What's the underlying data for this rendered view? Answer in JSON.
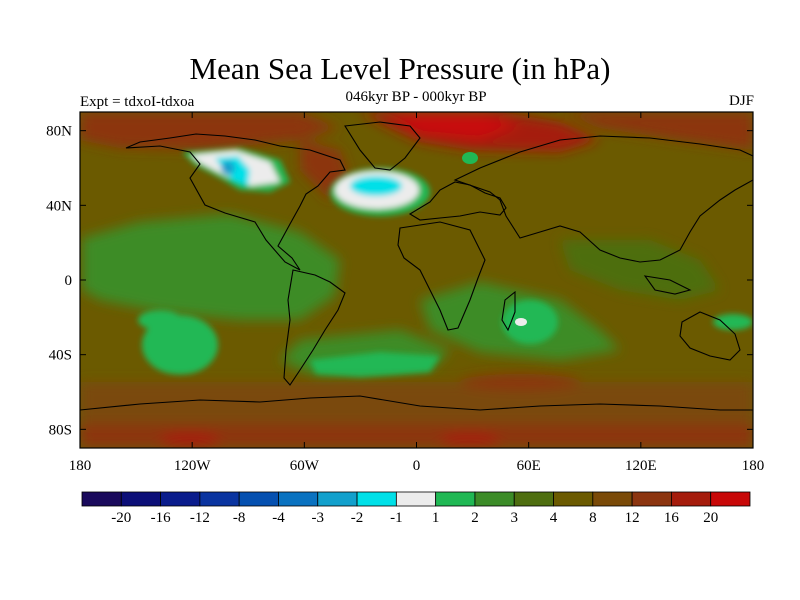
{
  "title": "Mean Sea Level Pressure (in hPa)",
  "subtitle": "046kyr BP - 000kyr BP",
  "experiment_label": "Expt = tdxoI-tdxoa",
  "season_label": "DJF",
  "map": {
    "projection": "cylindrical equidistant",
    "lon_range": [
      -180,
      180
    ],
    "lat_range": [
      -90,
      90
    ],
    "background_color": "#6b5a00"
  },
  "axes": {
    "lon_ticks": [
      {
        "value": -180,
        "label": "180"
      },
      {
        "value": -120,
        "label": "120W"
      },
      {
        "value": -60,
        "label": "60W"
      },
      {
        "value": 0,
        "label": "0"
      },
      {
        "value": 60,
        "label": "60E"
      },
      {
        "value": 120,
        "label": "120E"
      },
      {
        "value": 180,
        "label": "180"
      }
    ],
    "lat_ticks": [
      {
        "value": 80,
        "label": "80N"
      },
      {
        "value": 40,
        "label": "40N"
      },
      {
        "value": 0,
        "label": "0"
      },
      {
        "value": -40,
        "label": "40S"
      },
      {
        "value": -80,
        "label": "80S"
      }
    ]
  },
  "colorbar": {
    "colors": [
      "#1a0a5c",
      "#0c0f78",
      "#0a1c8c",
      "#0a34a0",
      "#0550b0",
      "#0a72c0",
      "#12a0cc",
      "#00e0e8",
      "#ececec",
      "#20b854",
      "#3c8c28",
      "#4e6e10",
      "#6b5a00",
      "#7a4a08",
      "#8c3510",
      "#a51c0c",
      "#c80808"
    ],
    "labels": [
      "-20",
      "-16",
      "-12",
      "-8",
      "-4",
      "-3",
      "-2",
      "-1",
      "1",
      "2",
      "3",
      "4",
      "8",
      "12",
      "16",
      "20"
    ]
  },
  "chart_data": {
    "type": "heatmap",
    "title": "Mean Sea Level Pressure (in hPa)",
    "subtitle": "046kyr BP - 000kyr BP",
    "variable": "Mean Sea Level Pressure",
    "units": "hPa",
    "season": "DJF",
    "levels": [
      -20,
      -16,
      -12,
      -8,
      -4,
      -3,
      -2,
      -1,
      1,
      2,
      3,
      4,
      8,
      12,
      16,
      20
    ],
    "background_level": "4 to 8",
    "regions": [
      {
        "name": "Arctic",
        "lon": 0,
        "lat": 80,
        "value": 18
      },
      {
        "name": "North America (Hudson Bay)",
        "lon": -88,
        "lat": 63,
        "value": -2
      },
      {
        "name": "North Atlantic",
        "lon": -22,
        "lat": 52,
        "value": -2
      },
      {
        "name": "Tropical Pacific",
        "lon": -140,
        "lat": 15,
        "value": 3.5
      },
      {
        "name": "South Pacific",
        "lon": -130,
        "lat": -30,
        "value": 2
      },
      {
        "name": "Southern Atlantic",
        "lon": -20,
        "lat": -42,
        "value": 2
      },
      {
        "name": "Southwest Indian Ocean",
        "lon": 55,
        "lat": -22,
        "value": 1.5
      },
      {
        "name": "Southern Ocean",
        "lon": 0,
        "lat": -65,
        "value": 12
      },
      {
        "name": "Antarctica",
        "lon": 0,
        "lat": -84,
        "value": 10
      }
    ]
  }
}
